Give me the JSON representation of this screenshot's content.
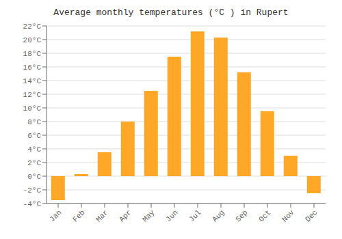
{
  "chart_data": {
    "type": "bar",
    "title": "Average monthly temperatures (°C ) in Rupert",
    "categories": [
      "Jan",
      "Feb",
      "Mar",
      "Apr",
      "May",
      "Jun",
      "Jul",
      "Aug",
      "Sep",
      "Oct",
      "Nov",
      "Dec"
    ],
    "values": [
      -3.5,
      0.3,
      3.5,
      8.0,
      12.5,
      17.5,
      21.2,
      20.3,
      15.2,
      9.5,
      3.0,
      -2.5
    ],
    "color": "#FFA726",
    "ylim": [
      -4,
      22
    ],
    "yticks": [
      {
        "value": -4,
        "label": "-4°C"
      },
      {
        "value": -2,
        "label": "-2°C"
      },
      {
        "value": 0,
        "label": "0°C"
      },
      {
        "value": 2,
        "label": "2°C"
      },
      {
        "value": 4,
        "label": "4°C"
      },
      {
        "value": 6,
        "label": "6°C"
      },
      {
        "value": 8,
        "label": "8°C"
      },
      {
        "value": 10,
        "label": "10°C"
      },
      {
        "value": 12,
        "label": "12°C"
      },
      {
        "value": 14,
        "label": "14°C"
      },
      {
        "value": 16,
        "label": "16°C"
      },
      {
        "value": 18,
        "label": "18°C"
      },
      {
        "value": 20,
        "label": "20°C"
      },
      {
        "value": 22,
        "label": "22°C"
      }
    ],
    "grid": true
  }
}
